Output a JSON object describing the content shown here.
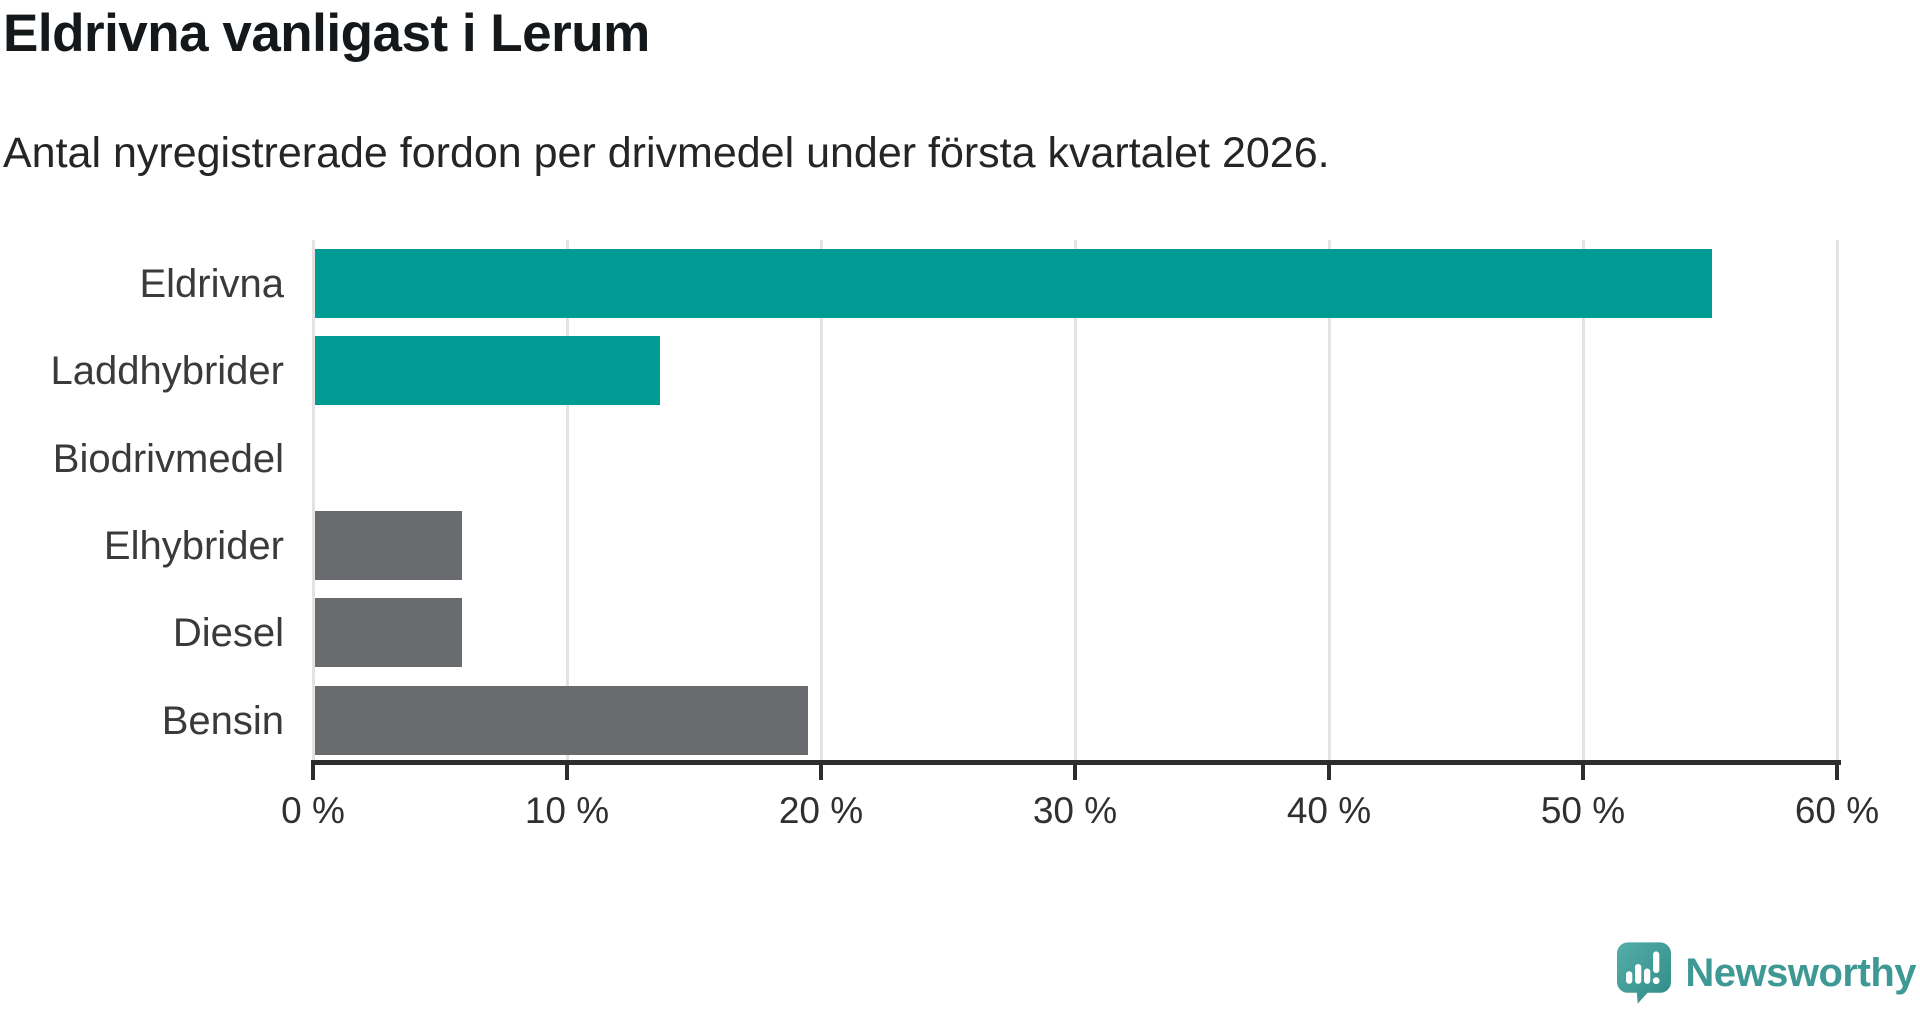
{
  "chart_data": {
    "type": "bar",
    "orientation": "horizontal",
    "title": "Eldrivna vanligast i Lerum",
    "subtitle": "Antal nyregistrerade fordon per drivmedel under första kvartalet 2026.",
    "categories": [
      "Eldrivna",
      "Laddhybrider",
      "Biodrivmedel",
      "Elhybrider",
      "Diesel",
      "Bensin"
    ],
    "values": [
      55,
      13.6,
      0,
      5.8,
      5.8,
      19.4
    ],
    "unit": "%",
    "xlim": [
      0,
      60
    ],
    "tick_values": [
      0,
      10,
      20,
      30,
      40,
      50,
      60
    ],
    "tick_labels": [
      "0 %",
      "10 %",
      "20 %",
      "30 %",
      "40 %",
      "50 %",
      "60 %"
    ],
    "bar_colors": [
      "#009c94",
      "#009c94",
      "#009c94",
      "#6a6b6f",
      "#6a6b6f",
      "#6a6b6f"
    ],
    "grid": "vertical",
    "legend": "none"
  },
  "palette": {
    "teal": "#009c94",
    "gray": "#6a6b6f",
    "gridline": "#e3e3e3",
    "axis": "#2d2d2d",
    "brand_teal": "#3e9894"
  },
  "footer": {
    "brand": "Newsworthy",
    "logo_icon": "newsworthy-speech-bubble-bar-chart"
  }
}
